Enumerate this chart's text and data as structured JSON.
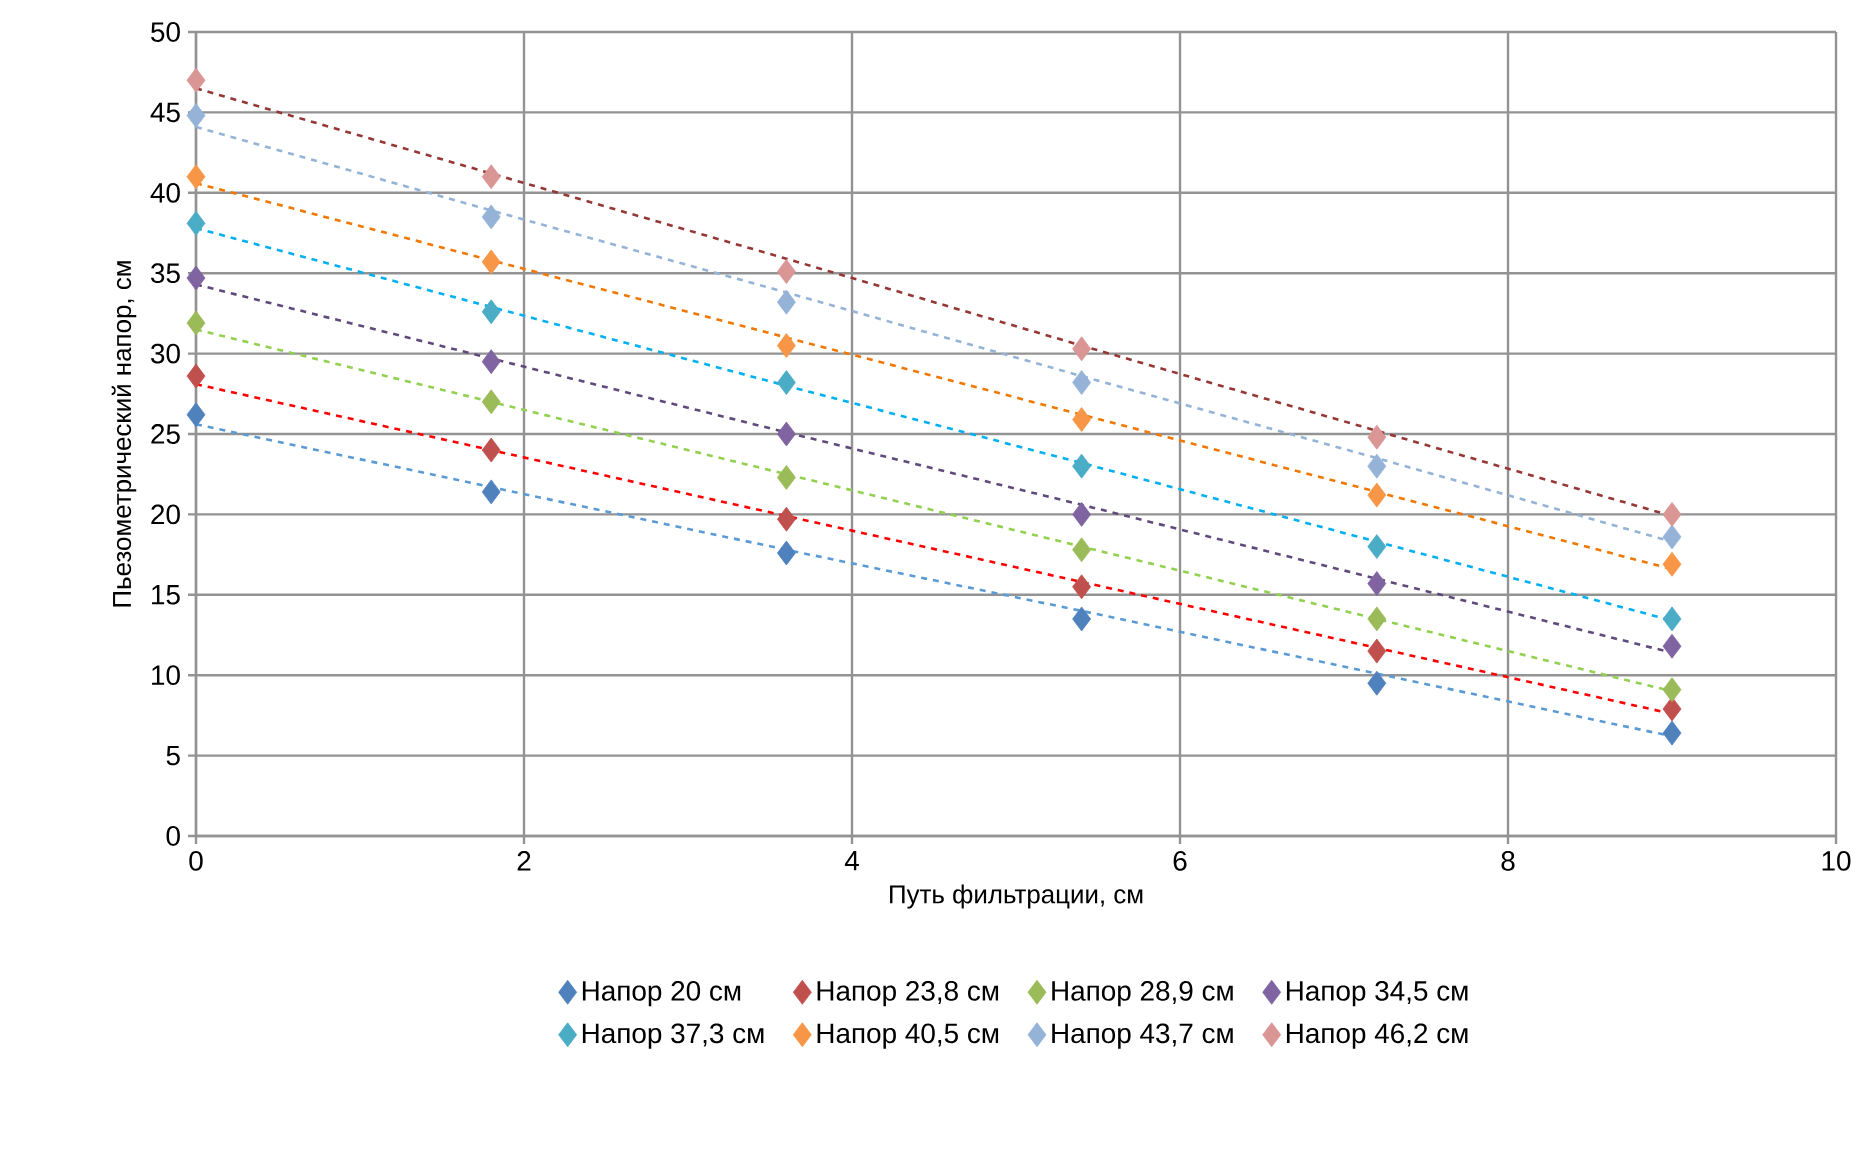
{
  "chart_data": {
    "type": "scatter",
    "xlabel": "Путь фильтрации, см",
    "ylabel": "Пьезометрический напор, см",
    "x": [
      0,
      1.8,
      3.6,
      5.4,
      7.2,
      9
    ],
    "xlim": [
      0,
      10
    ],
    "xticks": [
      0,
      2,
      4,
      6,
      8,
      10
    ],
    "ylim": [
      0,
      50
    ],
    "yticks": [
      0,
      5,
      10,
      15,
      20,
      25,
      30,
      35,
      40,
      45,
      50
    ],
    "grid": true,
    "legend": "bottom",
    "marker": "diamond",
    "series": [
      {
        "name": "Напор 20 см",
        "color": "#4f81bd",
        "values": [
          26.2,
          21.4,
          17.6,
          13.5,
          9.5,
          6.4
        ]
      },
      {
        "name": "Напор 23,8 см",
        "color": "#c0504d",
        "values": [
          28.6,
          24.0,
          19.7,
          15.5,
          11.5,
          7.9
        ]
      },
      {
        "name": "Напор 28,9 см",
        "color": "#9bbb59",
        "values": [
          31.9,
          27.0,
          22.3,
          17.8,
          13.5,
          9.1
        ]
      },
      {
        "name": "Напор 34,5 см",
        "color": "#8064a2",
        "values": [
          34.7,
          29.5,
          25.0,
          20.0,
          15.7,
          11.8
        ]
      },
      {
        "name": "Напор 37,3 см",
        "color": "#4bacc6",
        "values": [
          38.1,
          32.6,
          28.2,
          23.0,
          18.0,
          13.5
        ]
      },
      {
        "name": "Напор 40,5 см",
        "color": "#f79646",
        "values": [
          41.0,
          35.7,
          30.5,
          25.9,
          21.2,
          16.9
        ]
      },
      {
        "name": "Напор 43,7 см",
        "color": "#95b3d7",
        "values": [
          44.8,
          38.5,
          33.2,
          28.2,
          23.0,
          18.6
        ]
      },
      {
        "name": "Напор 46,2 см",
        "color": "#d99694",
        "values": [
          47.0,
          41.0,
          35.1,
          30.3,
          24.8,
          20.0
        ]
      },
      {
        "type": "line",
        "color": "#5b9bd5",
        "line_style": "dashed",
        "marker": "none",
        "values": [
          25.6,
          21.7,
          17.8,
          14.0,
          10.1,
          6.2
        ]
      },
      {
        "type": "line",
        "color": "#ff0000",
        "line_style": "dashed",
        "marker": "none",
        "values": [
          28.1,
          24.0,
          19.9,
          15.8,
          11.7,
          7.6
        ]
      },
      {
        "type": "line",
        "color": "#92d050",
        "line_style": "dashed",
        "marker": "none",
        "values": [
          31.5,
          27.0,
          22.5,
          18.0,
          13.5,
          9.0
        ]
      },
      {
        "type": "line",
        "color": "#604a7b",
        "line_style": "dashed",
        "marker": "none",
        "values": [
          34.3,
          29.7,
          25.1,
          20.6,
          16.0,
          11.4
        ]
      },
      {
        "type": "line",
        "color": "#00b0f0",
        "line_style": "dashed",
        "marker": "none",
        "values": [
          37.8,
          32.9,
          28.0,
          23.2,
          18.3,
          13.4
        ]
      },
      {
        "type": "line",
        "color": "#f07800",
        "line_style": "dashed",
        "marker": "none",
        "values": [
          40.6,
          35.8,
          31.0,
          26.2,
          21.4,
          16.6
        ]
      },
      {
        "type": "line",
        "color": "#95b3d7",
        "line_style": "dashed",
        "marker": "none",
        "values": [
          44.1,
          38.9,
          33.8,
          28.6,
          23.5,
          18.3
        ]
      },
      {
        "type": "line",
        "color": "#953735",
        "line_style": "dashed",
        "marker": "none",
        "values": [
          46.5,
          41.2,
          35.9,
          30.5,
          25.2,
          19.9
        ]
      }
    ]
  }
}
